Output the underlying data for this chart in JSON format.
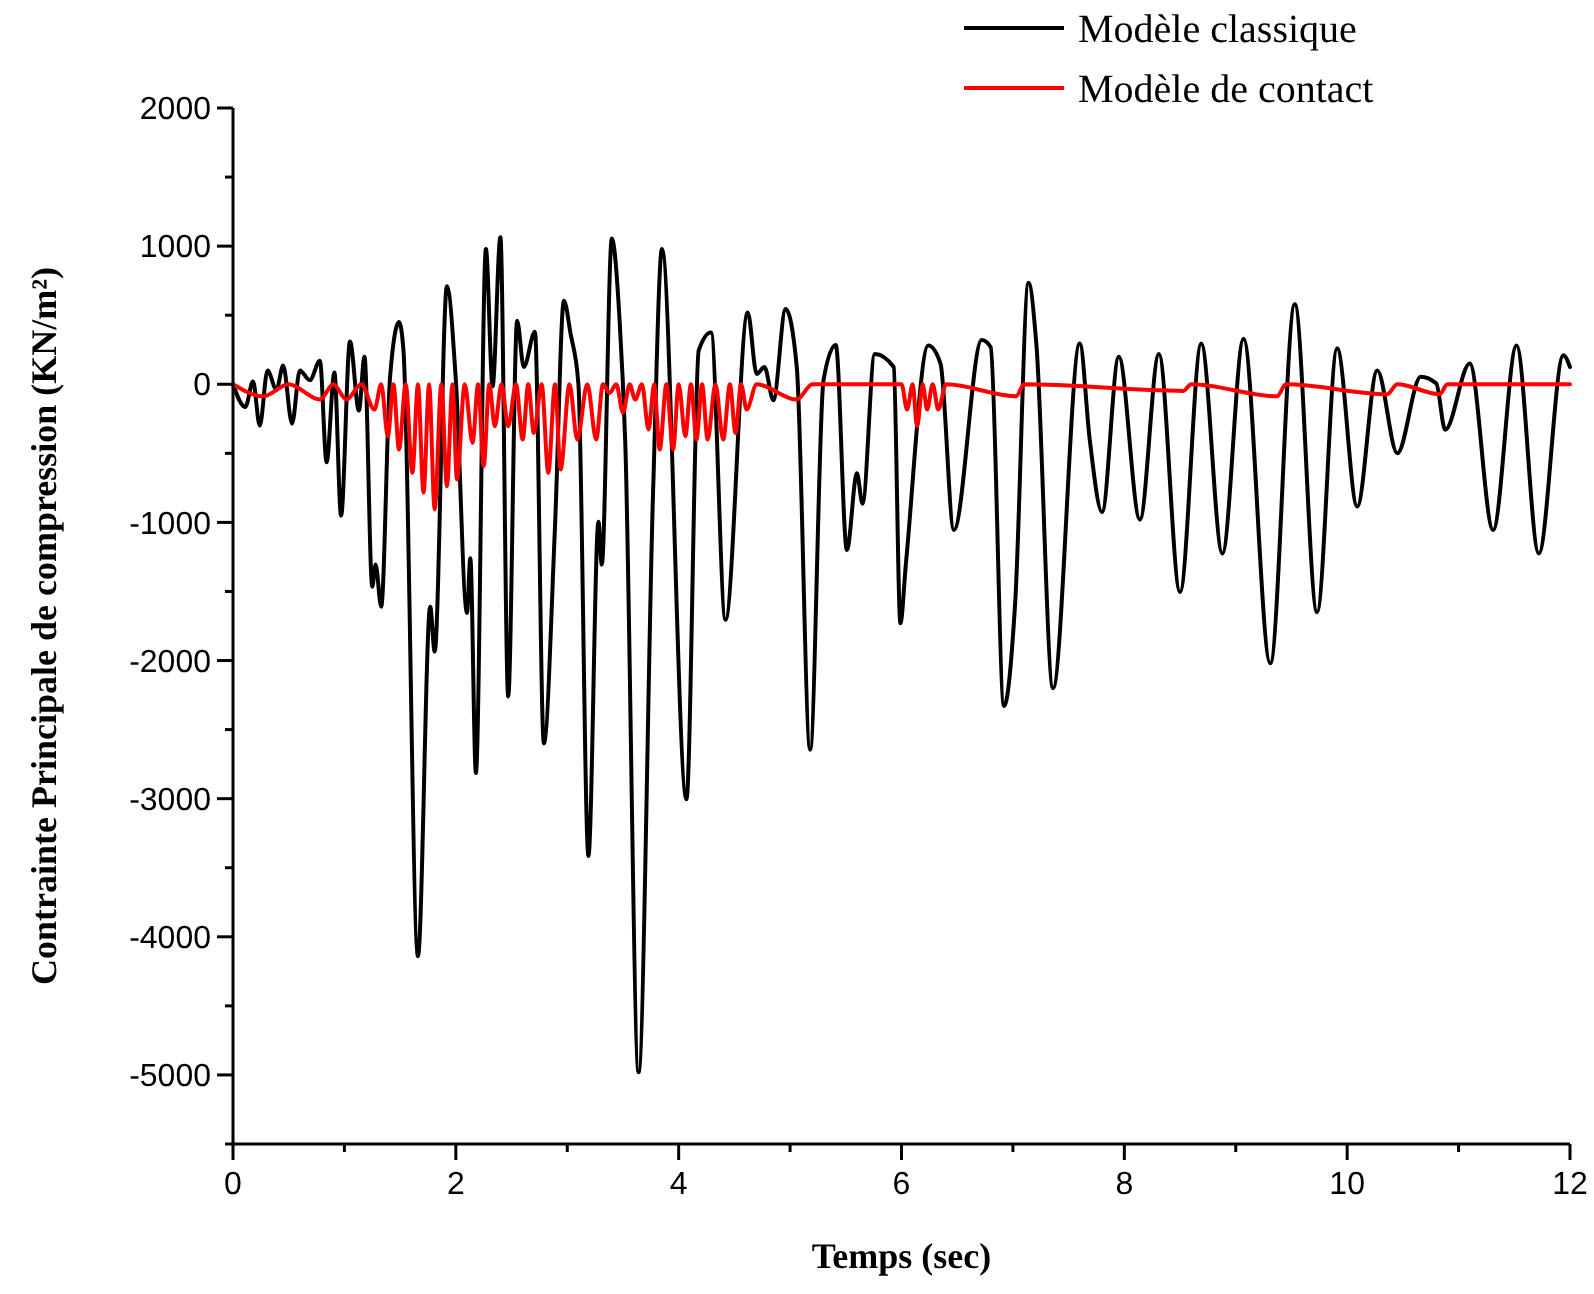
{
  "chart_data": {
    "type": "line",
    "xlabel": "Temps (sec)",
    "ylabel": "Contrainte Principale de compression (KN/m²)",
    "xlim": [
      0,
      12
    ],
    "xticks": [
      0,
      {
        "value": 1,
        "label": null
      },
      2,
      {
        "value": 3,
        "label": null
      },
      4,
      {
        "value": 5,
        "label": null
      },
      6,
      {
        "value": 7,
        "label": null
      },
      8,
      {
        "value": 9,
        "label": null
      },
      10,
      {
        "value": 11,
        "label": null
      },
      12
    ],
    "ylim": [
      -5500,
      2000
    ],
    "yticks": [
      {
        "value": -5500,
        "label": null
      },
      -5000,
      {
        "value": -4500,
        "label": null
      },
      -4000,
      {
        "value": -3500,
        "label": null
      },
      -3000,
      {
        "value": -2500,
        "label": null
      },
      -2000,
      {
        "value": -1500,
        "label": null
      },
      -1000,
      {
        "value": -500,
        "label": null
      },
      0,
      {
        "value": 500,
        "label": null
      },
      1000,
      {
        "value": 1500,
        "label": null
      },
      2000
    ],
    "grid": false,
    "legend": "top right",
    "line_style": "solid",
    "marker": "none",
    "series": [
      {
        "name": "Modèle classique",
        "color": "#000000",
        "x": [
          0,
          0.11,
          0.18,
          0.24,
          0.31,
          0.39,
          0.45,
          0.53,
          0.6,
          0.69,
          0.78,
          0.84,
          0.91,
          0.97,
          1.05,
          1.13,
          1.18,
          1.25,
          1.28,
          1.33,
          1.41,
          1.49,
          1.53,
          1.66,
          1.77,
          1.81,
          1.92,
          2.0,
          2.1,
          2.13,
          2.18,
          2.27,
          2.33,
          2.4,
          2.47,
          2.55,
          2.61,
          2.71,
          2.79,
          2.89,
          2.97,
          3.03,
          3.1,
          3.19,
          3.28,
          3.31,
          3.4,
          3.47,
          3.52,
          3.64,
          3.77,
          3.85,
          4.07,
          4.18,
          4.29,
          4.42,
          4.62,
          4.7,
          4.77,
          4.85,
          4.96,
          5.06,
          5.18,
          5.3,
          5.41,
          5.51,
          5.6,
          5.65,
          5.76,
          5.93,
          5.99,
          6.04,
          6.24,
          6.35,
          6.47,
          6.72,
          6.8,
          6.92,
          7.02,
          7.14,
          7.21,
          7.36,
          7.6,
          7.69,
          7.8,
          7.95,
          8.14,
          8.31,
          8.5,
          8.69,
          8.88,
          9.07,
          9.31,
          9.53,
          9.73,
          9.91,
          10.09,
          10.27,
          10.45,
          10.66,
          10.8,
          10.88,
          11.1,
          11.31,
          11.52,
          11.72,
          11.94,
          12.0
        ],
        "values": [
          0,
          -165,
          20,
          -300,
          100,
          -40,
          135,
          -285,
          100,
          30,
          170,
          -565,
          85,
          -950,
          310,
          -190,
          200,
          -1465,
          -1305,
          -1610,
          55,
          450,
          245,
          -4140,
          -1610,
          -1935,
          710,
          30,
          -1655,
          -1260,
          -2815,
          980,
          -15,
          1065,
          -2260,
          460,
          125,
          380,
          -2600,
          -1030,
          605,
          365,
          5,
          -3415,
          -995,
          -1305,
          1055,
          460,
          -405,
          -4980,
          -790,
          980,
          -3005,
          245,
          375,
          -1705,
          520,
          75,
          125,
          -115,
          545,
          125,
          -2645,
          30,
          285,
          -1200,
          -645,
          -865,
          220,
          125,
          -1730,
          -1295,
          280,
          150,
          -1055,
          320,
          270,
          -2330,
          -1585,
          735,
          295,
          -2200,
          295,
          -405,
          -925,
          200,
          -980,
          220,
          -1505,
          295,
          -1225,
          330,
          -2020,
          580,
          -1650,
          260,
          -885,
          100,
          -500,
          55,
          5,
          -330,
          150,
          -1055,
          280,
          -1225,
          210,
          125
        ]
      },
      {
        "name": "Modèle de contact",
        "color": "#ff0000",
        "x": [
          0,
          0.27,
          0.5,
          0.78,
          0.9,
          1.02,
          1.15,
          1.27,
          1.33,
          1.39,
          1.44,
          1.49,
          1.55,
          1.61,
          1.66,
          1.71,
          1.76,
          1.81,
          1.87,
          1.92,
          1.97,
          2.01,
          2.08,
          2.15,
          2.2,
          2.25,
          2.3,
          2.35,
          2.41,
          2.47,
          2.54,
          2.6,
          2.65,
          2.7,
          2.77,
          2.83,
          2.89,
          2.94,
          3.02,
          3.09,
          3.18,
          3.26,
          3.32,
          3.38,
          3.44,
          3.5,
          3.56,
          3.61,
          3.67,
          3.73,
          3.78,
          3.83,
          3.89,
          3.95,
          4.0,
          4.06,
          4.11,
          4.16,
          4.21,
          4.26,
          4.33,
          4.4,
          4.46,
          4.51,
          4.56,
          4.61,
          4.7,
          5.06,
          5.2,
          6.0,
          6.05,
          6.1,
          6.14,
          6.19,
          6.23,
          6.28,
          6.33,
          6.4,
          7.03,
          7.1,
          8.53,
          8.6,
          9.37,
          9.45,
          10.36,
          10.45,
          10.83,
          10.9,
          12
        ],
        "values": [
          0,
          -87,
          0,
          -111,
          0,
          -111,
          0,
          -183,
          0,
          -376,
          0,
          -472,
          0,
          -641,
          0,
          -786,
          0,
          -906,
          0,
          -738,
          0,
          -689,
          0,
          -424,
          0,
          -593,
          0,
          -304,
          0,
          -304,
          0,
          -400,
          0,
          -352,
          0,
          -641,
          0,
          -617,
          0,
          -400,
          0,
          -400,
          0,
          -63,
          0,
          -207,
          0,
          -111,
          0,
          -328,
          0,
          -472,
          0,
          -472,
          0,
          -376,
          0,
          -400,
          0,
          -400,
          0,
          -400,
          0,
          -352,
          0,
          -183,
          0,
          -111,
          0,
          0,
          -183,
          0,
          -304,
          0,
          -183,
          0,
          -183,
          0,
          -87,
          0,
          -48,
          0,
          -87,
          0,
          -72,
          0,
          -72,
          0,
          0
        ]
      }
    ]
  }
}
